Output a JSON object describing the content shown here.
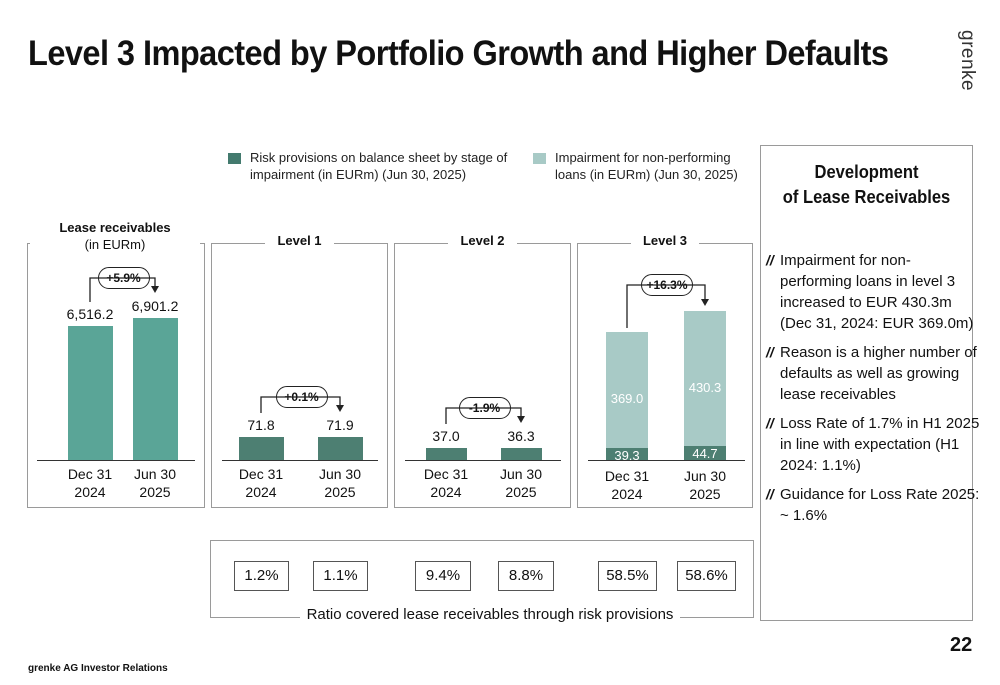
{
  "header": {
    "title": "Level 3 Impacted by Portfolio Growth and Higher Defaults",
    "logo": "grenke"
  },
  "legend": [
    {
      "label": "Risk provisions on balance sheet by stage of impairment (in EURm) (Jun 30, 2025)",
      "color": "#437a6e"
    },
    {
      "label": "Impairment for non-performing loans (in EURm) (Jun 30, 2025)",
      "color": "#a8cac6"
    }
  ],
  "colors": {
    "lease": "#5aa597",
    "stage": "#4d7f72",
    "npl": "#a8cac6"
  },
  "chart_data": [
    {
      "type": "bar",
      "title": "Lease receivables",
      "subtitle": "(in EURm)",
      "categories": [
        "Dec 31",
        "Jun 30"
      ],
      "category_years": [
        "2024",
        "2025"
      ],
      "values": [
        6516.2,
        6901.2
      ],
      "value_labels": [
        "6,516.2",
        "6,901.2"
      ],
      "change": "+5.9%"
    },
    {
      "type": "bar",
      "title": "Level 1",
      "categories": [
        "Dec 31",
        "Jun 30"
      ],
      "category_years": [
        "2024",
        "2025"
      ],
      "values": [
        71.8,
        71.9
      ],
      "value_labels": [
        "71.8",
        "71.9"
      ],
      "change": "+0.1%"
    },
    {
      "type": "bar",
      "title": "Level 2",
      "categories": [
        "Dec 31",
        "Jun 30"
      ],
      "category_years": [
        "2024",
        "2025"
      ],
      "values": [
        37.0,
        36.3
      ],
      "value_labels": [
        "37.0",
        "36.3"
      ],
      "change": "-1.9%"
    },
    {
      "type": "bar",
      "stacked": true,
      "title": "Level 3",
      "categories": [
        "Dec 31",
        "Jun 30"
      ],
      "category_years": [
        "2024",
        "2025"
      ],
      "series": [
        {
          "values": [
            39.3,
            44.7
          ],
          "value_labels": [
            "39.3",
            "44.7"
          ]
        },
        {
          "values": [
            369.0,
            430.3
          ],
          "value_labels": [
            "369.0",
            "430.3"
          ]
        }
      ],
      "change": "+16.3%"
    }
  ],
  "ratios": {
    "values": [
      "1.2%",
      "1.1%",
      "9.4%",
      "8.8%",
      "58.5%",
      "58.6%"
    ],
    "caption": "Ratio covered lease receivables through risk provisions"
  },
  "sidebar": {
    "title_line1": "Development",
    "title_line2": "of Lease Receivables",
    "marker": "//",
    "bullets": [
      "Impairment for non-performing loans in level 3 increased to EUR 430.3m (Dec 31, 2024: EUR 369.0m)",
      "Reason is a higher number of defaults as well as growing lease receivables",
      "Loss Rate of 1.7% in H1 2025 in line with expectation (H1 2024: 1.1%)",
      "Guidance for Loss Rate 2025: ~ 1.6%"
    ]
  },
  "footer": {
    "text": "grenke AG Investor Relations",
    "page_number": "22"
  }
}
